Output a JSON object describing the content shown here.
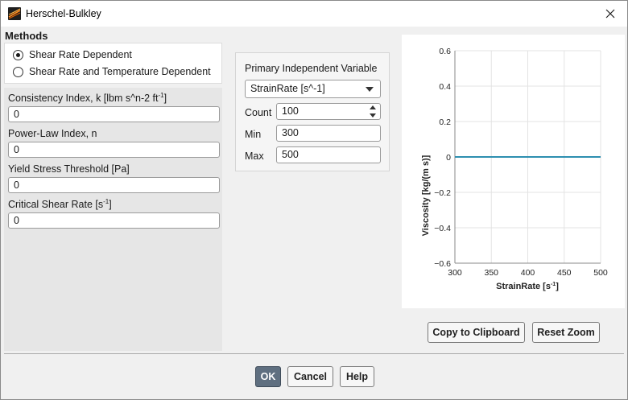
{
  "window": {
    "title": "Herschel-Bulkley",
    "close_icon": "close-icon",
    "app_icon": "fluent-app-icon"
  },
  "methods": {
    "title": "Methods",
    "options": [
      {
        "label": "Shear Rate Dependent",
        "selected": true
      },
      {
        "label": "Shear Rate and Temperature Dependent",
        "selected": false
      }
    ]
  },
  "parameters": {
    "consistency": {
      "label_main": "Consistency Index, k [lbm s^n-2 ft",
      "label_sup": "-1",
      "label_end": "]",
      "value": "0"
    },
    "power_law": {
      "label": "Power-Law Index, n",
      "value": "0"
    },
    "yield_stress": {
      "label": "Yield Stress Threshold [Pa]",
      "value": "0"
    },
    "critical_shear": {
      "label_main": "Critical Shear Rate [s",
      "label_sup": "-1",
      "label_end": "]",
      "value": "0"
    }
  },
  "piv": {
    "title": "Primary Independent Variable",
    "variable": "StrainRate [s^-1]",
    "count_label": "Count",
    "count_value": "100",
    "min_label": "Min",
    "min_value": "300",
    "max_label": "Max",
    "max_value": "500"
  },
  "plot_buttons": {
    "copy": "Copy to Clipboard",
    "reset": "Reset Zoom"
  },
  "dialog_buttons": {
    "ok": "OK",
    "cancel": "Cancel",
    "help": "Help"
  },
  "colors": {
    "accent": "#5f6f80",
    "series": "#2d8fb0"
  },
  "chart_data": {
    "type": "line",
    "title": "",
    "xlabel_main": "StrainRate [s",
    "xlabel_sup": "-1",
    "xlabel_end": "]",
    "ylabel": "Viscosity [kg/(m s)]",
    "xlim": [
      300,
      500
    ],
    "ylim": [
      -0.6,
      0.6
    ],
    "xticks": [
      "300",
      "350",
      "400",
      "450",
      "500"
    ],
    "yticks": [
      "0.6",
      "0.4",
      "0.2",
      "0",
      "−0.2",
      "−0.4",
      "−0.6"
    ],
    "series": [
      {
        "x": [
          300,
          500
        ],
        "y": [
          0,
          0
        ]
      }
    ],
    "grid": true
  }
}
